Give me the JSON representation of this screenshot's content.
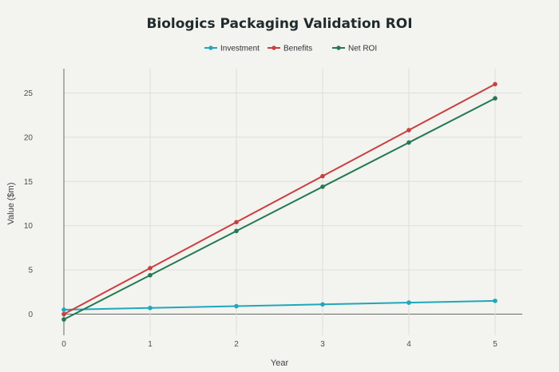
{
  "chart_data": {
    "type": "line",
    "title": "Biologics Packaging Validation ROI",
    "xlabel": "Year",
    "ylabel": "Value ($m)",
    "x": [
      0,
      1,
      2,
      3,
      4,
      5
    ],
    "xlim": [
      -0.3,
      5.3
    ],
    "ylim": [
      -2.5,
      28
    ],
    "xticks": [
      0,
      1,
      2,
      3,
      4,
      5
    ],
    "yticks": [
      0,
      5,
      10,
      15,
      20,
      25
    ],
    "grid": true,
    "legend_position": "top-center",
    "series": [
      {
        "name": "Investment",
        "color": "#1fa7bd",
        "values": [
          0.5,
          0.7,
          0.9,
          1.1,
          1.3,
          1.5
        ]
      },
      {
        "name": "Benefits",
        "color": "#c93f3f",
        "values": [
          0.0,
          5.2,
          10.4,
          15.6,
          20.8,
          26.0
        ]
      },
      {
        "name": "Net ROI",
        "color": "#237a52",
        "values": [
          -0.6,
          4.4,
          9.4,
          14.4,
          19.4,
          24.4
        ]
      }
    ]
  }
}
